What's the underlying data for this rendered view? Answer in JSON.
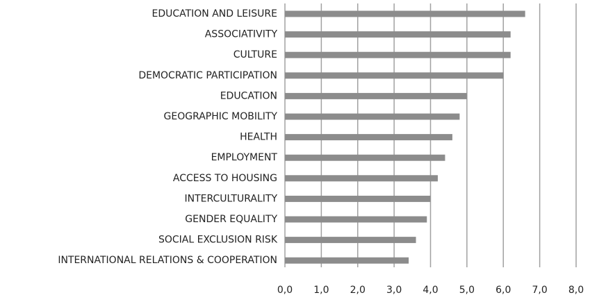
{
  "chart_data": {
    "type": "barh",
    "categories": [
      "EDUCATION AND LEISURE",
      "ASSOCIATIVITY",
      "CULTURE",
      "DEMOCRATIC PARTICIPATION",
      "EDUCATION",
      "GEOGRAPHIC MOBILITY",
      "HEALTH",
      "EMPLOYMENT",
      "ACCESS TO HOUSING",
      "INTERCULTURALITY",
      "GENDER EQUALITY",
      "SOCIAL EXCLUSION RISK",
      "INTERNATIONAL RELATIONS & COOPERATION"
    ],
    "values": [
      6.6,
      6.2,
      6.2,
      6.0,
      5.0,
      4.8,
      4.6,
      4.4,
      4.2,
      4.0,
      3.9,
      3.6,
      3.4
    ],
    "color": "#8c8c8c",
    "xlim": [
      0,
      8
    ],
    "xticks": [
      {
        "value": 0,
        "label": "0,0"
      },
      {
        "value": 1,
        "label": "1,0"
      },
      {
        "value": 2,
        "label": "2,0"
      },
      {
        "value": 3,
        "label": "3,0"
      },
      {
        "value": 4,
        "label": "4,0"
      },
      {
        "value": 5,
        "label": "5,0"
      },
      {
        "value": 6,
        "label": "6,0"
      },
      {
        "value": 7,
        "label": "7,0"
      },
      {
        "value": 8,
        "label": "8,0"
      }
    ],
    "grid": true
  }
}
